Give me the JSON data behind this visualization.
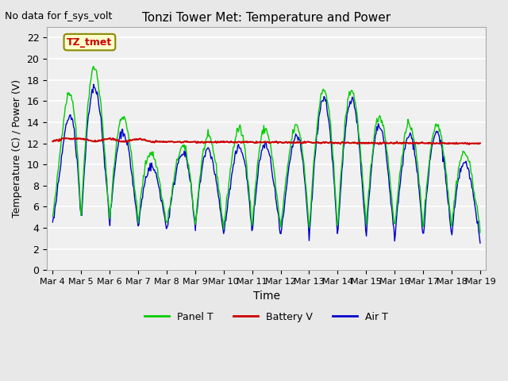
{
  "title": "Tonzi Tower Met: Temperature and Power",
  "no_data_text": "No data for f_sys_volt",
  "xlabel": "Time",
  "ylabel": "Temperature (C) / Power (V)",
  "annotation_text": "TZ_tmet",
  "ylim": [
    0,
    23
  ],
  "yticks": [
    0,
    2,
    4,
    6,
    8,
    10,
    12,
    14,
    16,
    18,
    20,
    22
  ],
  "xtick_labels": [
    "Mar 4",
    "Mar 5",
    "Mar 6",
    "Mar 7",
    "Mar 8",
    "Mar 9",
    "Mar 10",
    "Mar 11",
    "Mar 12",
    "Mar 13",
    "Mar 14",
    "Mar 15",
    "Mar 16",
    "Mar 17",
    "Mar 18",
    "Mar 19"
  ],
  "background_color": "#e8e8e8",
  "plot_bg_color": "#f0f0f0",
  "grid_color": "#ffffff",
  "panel_color": "#00cc00",
  "battery_color": "#cc0000",
  "air_color": "#0000cc",
  "annotation_bg": "#ffffcc",
  "annotation_border": "#888800",
  "annotation_text_color": "#cc0000",
  "legend_labels": [
    "Panel T",
    "Battery V",
    "Air T"
  ],
  "battery_voltage": 12.2,
  "battery_slope": -0.015
}
